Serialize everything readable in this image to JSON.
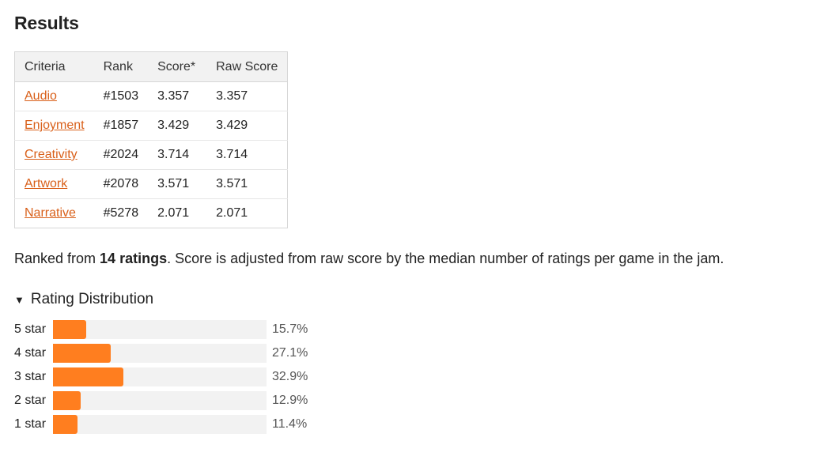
{
  "title": "Results",
  "table": {
    "headers": [
      "Criteria",
      "Rank",
      "Score*",
      "Raw Score"
    ],
    "rows": [
      {
        "criteria": "Audio",
        "rank": "#1503",
        "score": "3.357",
        "raw": "3.357"
      },
      {
        "criteria": "Enjoyment",
        "rank": "#1857",
        "score": "3.429",
        "raw": "3.429"
      },
      {
        "criteria": "Creativity",
        "rank": "#2024",
        "score": "3.714",
        "raw": "3.714"
      },
      {
        "criteria": "Artwork",
        "rank": "#2078",
        "score": "3.571",
        "raw": "3.571"
      },
      {
        "criteria": "Narrative",
        "rank": "#5278",
        "score": "2.071",
        "raw": "2.071"
      }
    ]
  },
  "summary": {
    "prefix": "Ranked from ",
    "count": "14 ratings",
    "suffix": ". Score is adjusted from raw score by the median number of ratings per game in the jam."
  },
  "distribution": {
    "toggle_label": "Rating Distribution",
    "toggle_icon": "triangle-down-icon",
    "bar_color": "#ff7e1f",
    "scale_max_percent": 100,
    "rows": [
      {
        "label": "5 star",
        "percent": 15.7,
        "text": "15.7%"
      },
      {
        "label": "4 star",
        "percent": 27.1,
        "text": "27.1%"
      },
      {
        "label": "3 star",
        "percent": 32.9,
        "text": "32.9%"
      },
      {
        "label": "2 star",
        "percent": 12.9,
        "text": "12.9%"
      },
      {
        "label": "1 star",
        "percent": 11.4,
        "text": "11.4%"
      }
    ]
  }
}
